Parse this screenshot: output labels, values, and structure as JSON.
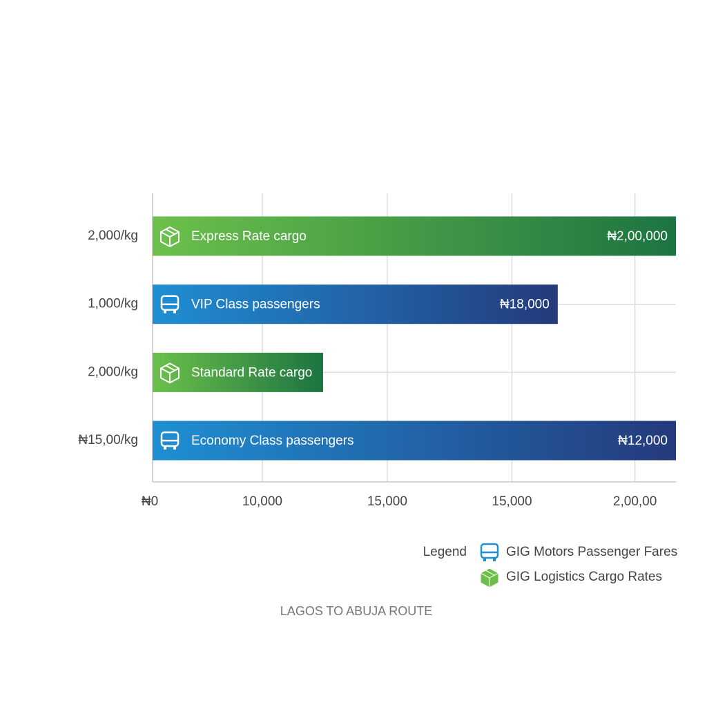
{
  "chart_data": {
    "type": "bar",
    "orientation": "horizontal",
    "categories": [
      "2,000/kg",
      "1,000/kg",
      "2,000/kg",
      "₦15,00/kg"
    ],
    "bar_names": [
      "Express Rate cargo",
      "VIP Class passengers",
      "Standard Rate cargo",
      "Economy Class passengers"
    ],
    "price_labels": [
      "₦2,00,000",
      "₦18,000",
      null,
      "₦12,000"
    ],
    "series": [
      {
        "name": "GIG Motors Passenger Fares",
        "colors": [
          "#1f8fd3",
          "#243a7c"
        ],
        "values": [
          null,
          16800,
          null,
          21700
        ]
      },
      {
        "name": "GIG Logistics Cargo Rates",
        "colors": [
          "#6cc04a",
          "#1c7442"
        ],
        "values": [
          21700,
          null,
          7070,
          null
        ]
      }
    ],
    "xlim": [
      0,
      21700
    ],
    "xticks": [
      {
        "value": 0,
        "label": "₦0"
      },
      {
        "value": 4550,
        "label": "10,000"
      },
      {
        "value": 9730,
        "label": "15,000"
      },
      {
        "value": 14900,
        "label": "15,000"
      },
      {
        "value": 20000,
        "label": "2,00,00"
      }
    ],
    "grid": true,
    "legend_title": "Legend",
    "footer": "LAGOS TO ABUJA ROUTE"
  }
}
